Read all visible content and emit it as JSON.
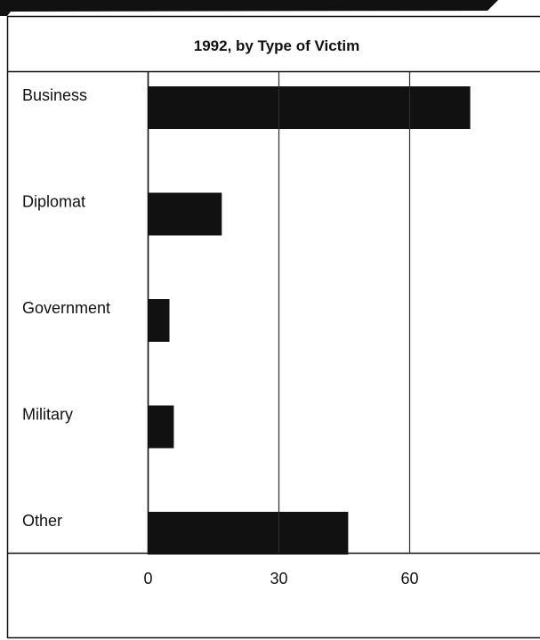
{
  "chart_data": {
    "type": "bar",
    "orientation": "horizontal",
    "title": "1992, by Type of Victim",
    "xlabel": "",
    "ylabel": "",
    "categories": [
      "Business",
      "Diplomat",
      "Government",
      "Military",
      "Other"
    ],
    "values": [
      74,
      17,
      5,
      6,
      46
    ],
    "xlim": [
      0,
      90
    ],
    "x_ticks": [
      0,
      30,
      60
    ],
    "grid": true,
    "legend": "none",
    "colors": {
      "bar": "#111111",
      "grid": "#111111",
      "background": "#ffffff",
      "banner": "#111111"
    }
  }
}
